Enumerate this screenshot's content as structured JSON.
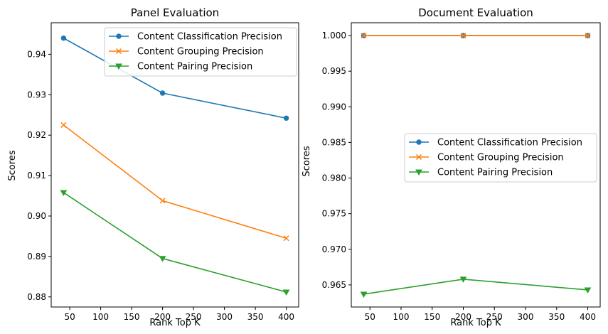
{
  "chart_data": [
    {
      "type": "line",
      "title": "Panel Evaluation",
      "xlabel": "Rank Top K",
      "ylabel": "Scores",
      "x": [
        40,
        200,
        400
      ],
      "xlim": [
        20,
        420
      ],
      "ylim": [
        0.8775,
        0.9478
      ],
      "xticks": [
        50,
        100,
        150,
        200,
        250,
        300,
        350,
        400
      ],
      "yticks": [
        0.88,
        0.89,
        0.9,
        0.91,
        0.92,
        0.93,
        0.94
      ],
      "ytick_decimals": 2,
      "legend_position": "top-right",
      "series": [
        {
          "name": "Content Classification Precision",
          "values": [
            0.944,
            0.9304,
            0.9242
          ],
          "color": "#1f77b4",
          "marker": "circle"
        },
        {
          "name": "Content Grouping Precision",
          "values": [
            0.9225,
            0.9038,
            0.8945
          ],
          "color": "#ff7f0e",
          "marker": "x"
        },
        {
          "name": "Content Pairing Precision",
          "values": [
            0.9058,
            0.8895,
            0.8812
          ],
          "color": "#2ca02c",
          "marker": "triangle-down"
        }
      ]
    },
    {
      "type": "line",
      "title": "Document Evaluation",
      "xlabel": "Rank Top K",
      "ylabel": "Scores",
      "x": [
        40,
        200,
        400
      ],
      "xlim": [
        20,
        420
      ],
      "ylim": [
        0.9619,
        1.0018
      ],
      "xticks": [
        50,
        100,
        150,
        200,
        250,
        300,
        350,
        400
      ],
      "yticks": [
        0.965,
        0.97,
        0.975,
        0.98,
        0.985,
        0.99,
        0.995,
        1.0
      ],
      "ytick_decimals": 3,
      "legend_position": "center-right",
      "series": [
        {
          "name": "Content Classification Precision",
          "values": [
            1.0,
            1.0,
            1.0
          ],
          "color": "#1f77b4",
          "marker": "circle"
        },
        {
          "name": "Content Grouping Precision",
          "values": [
            1.0,
            1.0,
            1.0
          ],
          "color": "#ff7f0e",
          "marker": "x"
        },
        {
          "name": "Content Pairing Precision",
          "values": [
            0.9637,
            0.9658,
            0.9643
          ],
          "color": "#2ca02c",
          "marker": "triangle-down"
        }
      ]
    }
  ]
}
